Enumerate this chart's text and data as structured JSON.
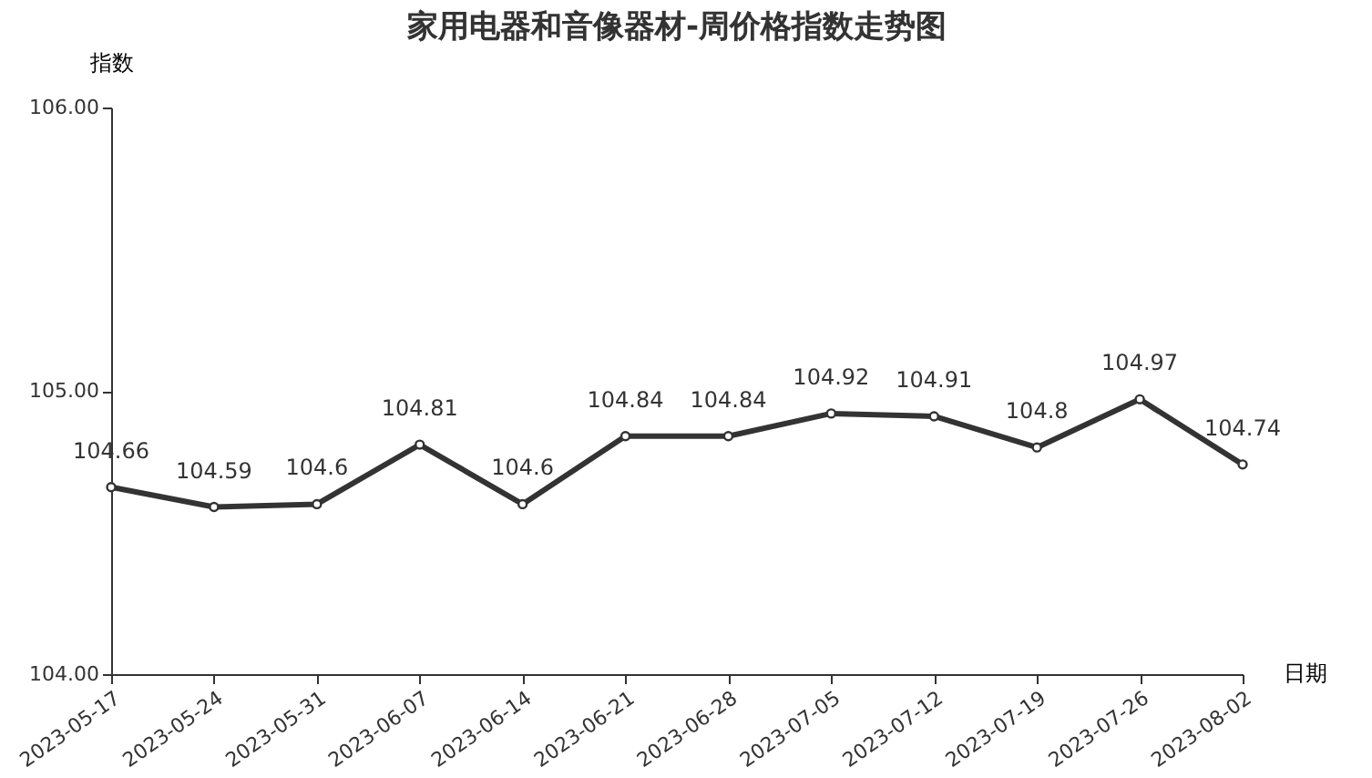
{
  "chart_data": {
    "type": "line",
    "title": "家用电器和音像器材-周价格指数走势图",
    "xlabel": "日期",
    "ylabel": "指数",
    "categories": [
      "2023-05-17",
      "2023-05-24",
      "2023-05-31",
      "2023-06-07",
      "2023-06-14",
      "2023-06-21",
      "2023-06-28",
      "2023-07-05",
      "2023-07-12",
      "2023-07-19",
      "2023-07-26",
      "2023-08-02"
    ],
    "series": [
      {
        "color": "#333333",
        "values": [
          104.66,
          104.59,
          104.6,
          104.81,
          104.6,
          104.84,
          104.84,
          104.92,
          104.91,
          104.8,
          104.97,
          104.74
        ]
      }
    ],
    "ylim": [
      104,
      106
    ],
    "yticks": [
      {
        "value": 104,
        "label": "104.00"
      },
      {
        "value": 105,
        "label": "105.00"
      },
      {
        "value": 106,
        "label": "106.00"
      }
    ],
    "data_labels": true,
    "grid": false,
    "marker": "circle",
    "line_style": "solid"
  }
}
